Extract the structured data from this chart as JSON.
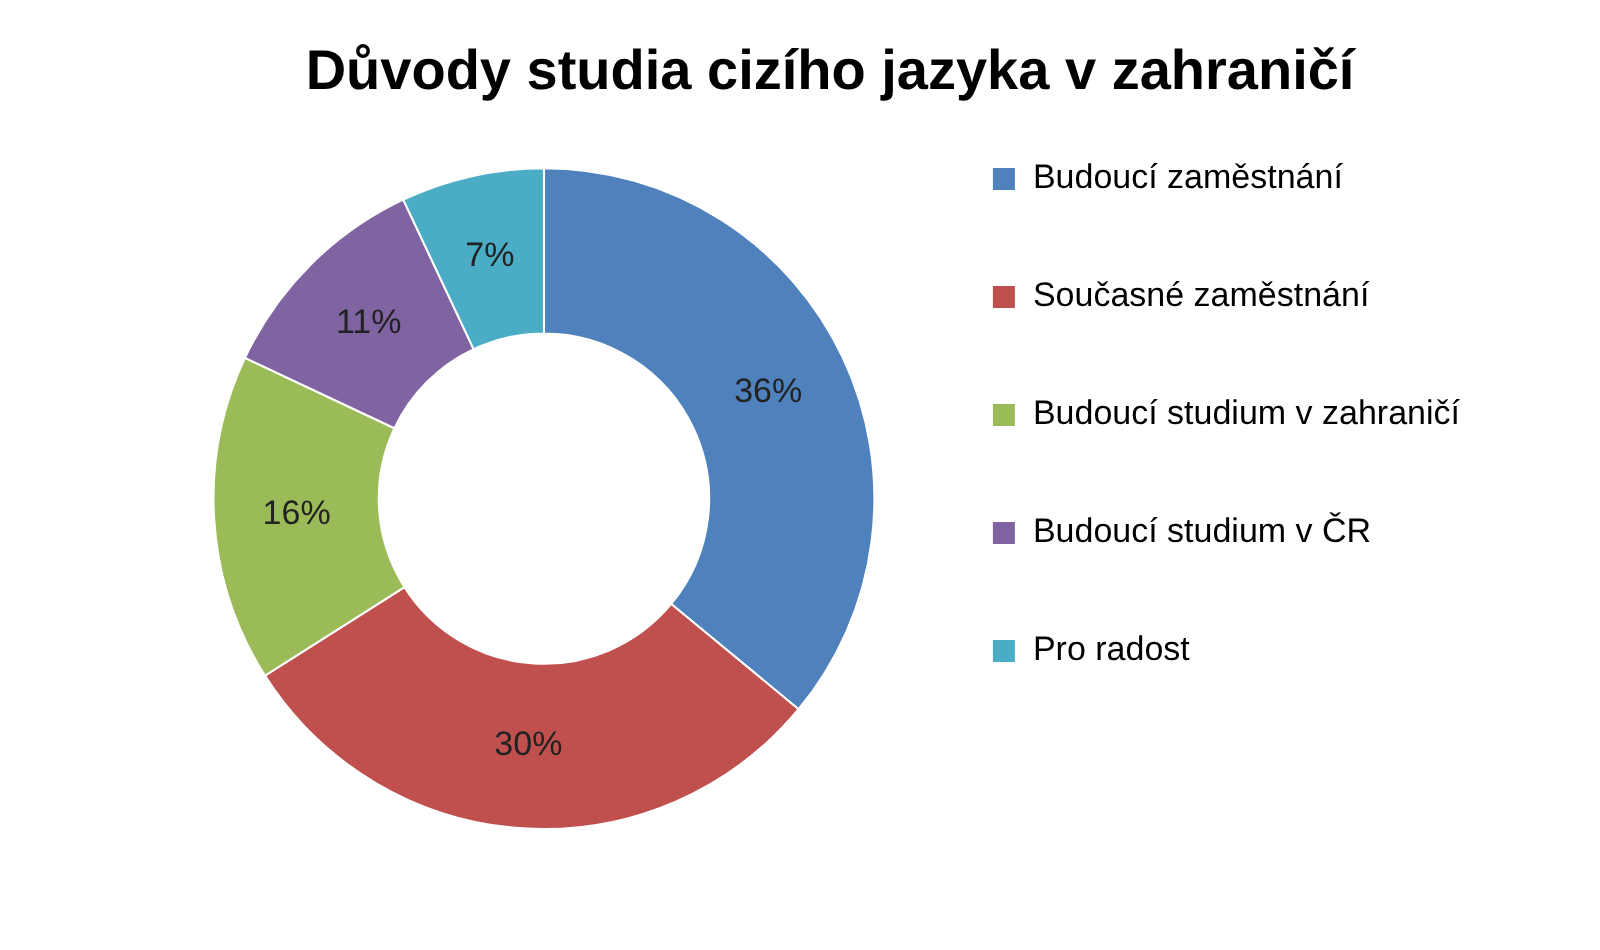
{
  "chart_data": {
    "type": "donut",
    "title": "Důvody studia cizího jazyka v zahraničí",
    "categories": [
      "Budoucí zaměstnání",
      "Současné zaměstnání",
      "Budoucí studium v zahraničí",
      "Budoucí studium v ČR",
      "Pro radost"
    ],
    "values": [
      36,
      30,
      16,
      11,
      7
    ],
    "colors": [
      "#4f81bd",
      "#c0504d",
      "#9bbb59",
      "#8064a2",
      "#4bacc6"
    ],
    "value_labels": [
      "36%",
      "30%",
      "16%",
      "11%",
      "7%"
    ],
    "legend": "right"
  }
}
